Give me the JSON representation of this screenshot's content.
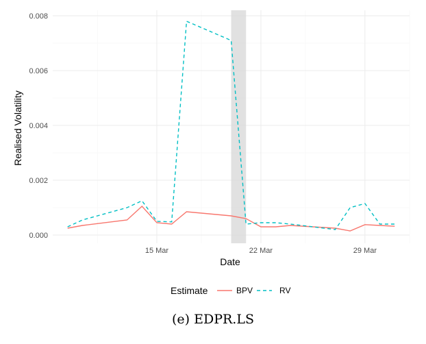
{
  "caption": "(e) EDPR.LS",
  "chart_data": {
    "type": "line",
    "title": "",
    "xlabel": "Date",
    "ylabel": "Realised Volatility",
    "x_ticks": [
      "15 Mar",
      "22 Mar",
      "29 Mar"
    ],
    "y_ticks": [
      "0.000",
      "0.002",
      "0.004",
      "0.006",
      "0.008"
    ],
    "x": [
      "2023-03-09",
      "2023-03-10",
      "2023-03-13",
      "2023-03-14",
      "2023-03-15",
      "2023-03-16",
      "2023-03-17",
      "2023-03-20",
      "2023-03-21",
      "2023-03-22",
      "2023-03-23",
      "2023-03-24",
      "2023-03-27",
      "2023-03-28",
      "2023-03-29",
      "2023-03-30",
      "2023-03-31"
    ],
    "xlim": [
      "2023-03-08",
      "2023-04-01"
    ],
    "ylim": [
      -0.0003,
      0.0082
    ],
    "shaded_region": [
      "2023-03-20",
      "2023-03-21"
    ],
    "series": [
      {
        "name": "BPV",
        "color": "#F8766D",
        "dash": "solid",
        "values": [
          0.00025,
          0.00035,
          0.00055,
          0.00105,
          0.00045,
          0.0004,
          0.00085,
          0.0007,
          0.0006,
          0.0003,
          0.0003,
          0.00035,
          0.00025,
          0.00015,
          0.00038,
          0.00035,
          0.00032
        ]
      },
      {
        "name": "RV",
        "color": "#00BFC4",
        "dash": "dashed",
        "values": [
          0.0003,
          0.00055,
          0.001,
          0.00125,
          0.0005,
          0.00048,
          0.0078,
          0.0071,
          0.0004,
          0.00045,
          0.00045,
          0.0004,
          0.0002,
          0.001,
          0.00115,
          0.0004,
          0.0004
        ]
      }
    ],
    "legend": {
      "title": "Estimate",
      "position": "bottom",
      "entries": [
        "BPV",
        "RV"
      ]
    },
    "grid": true
  }
}
